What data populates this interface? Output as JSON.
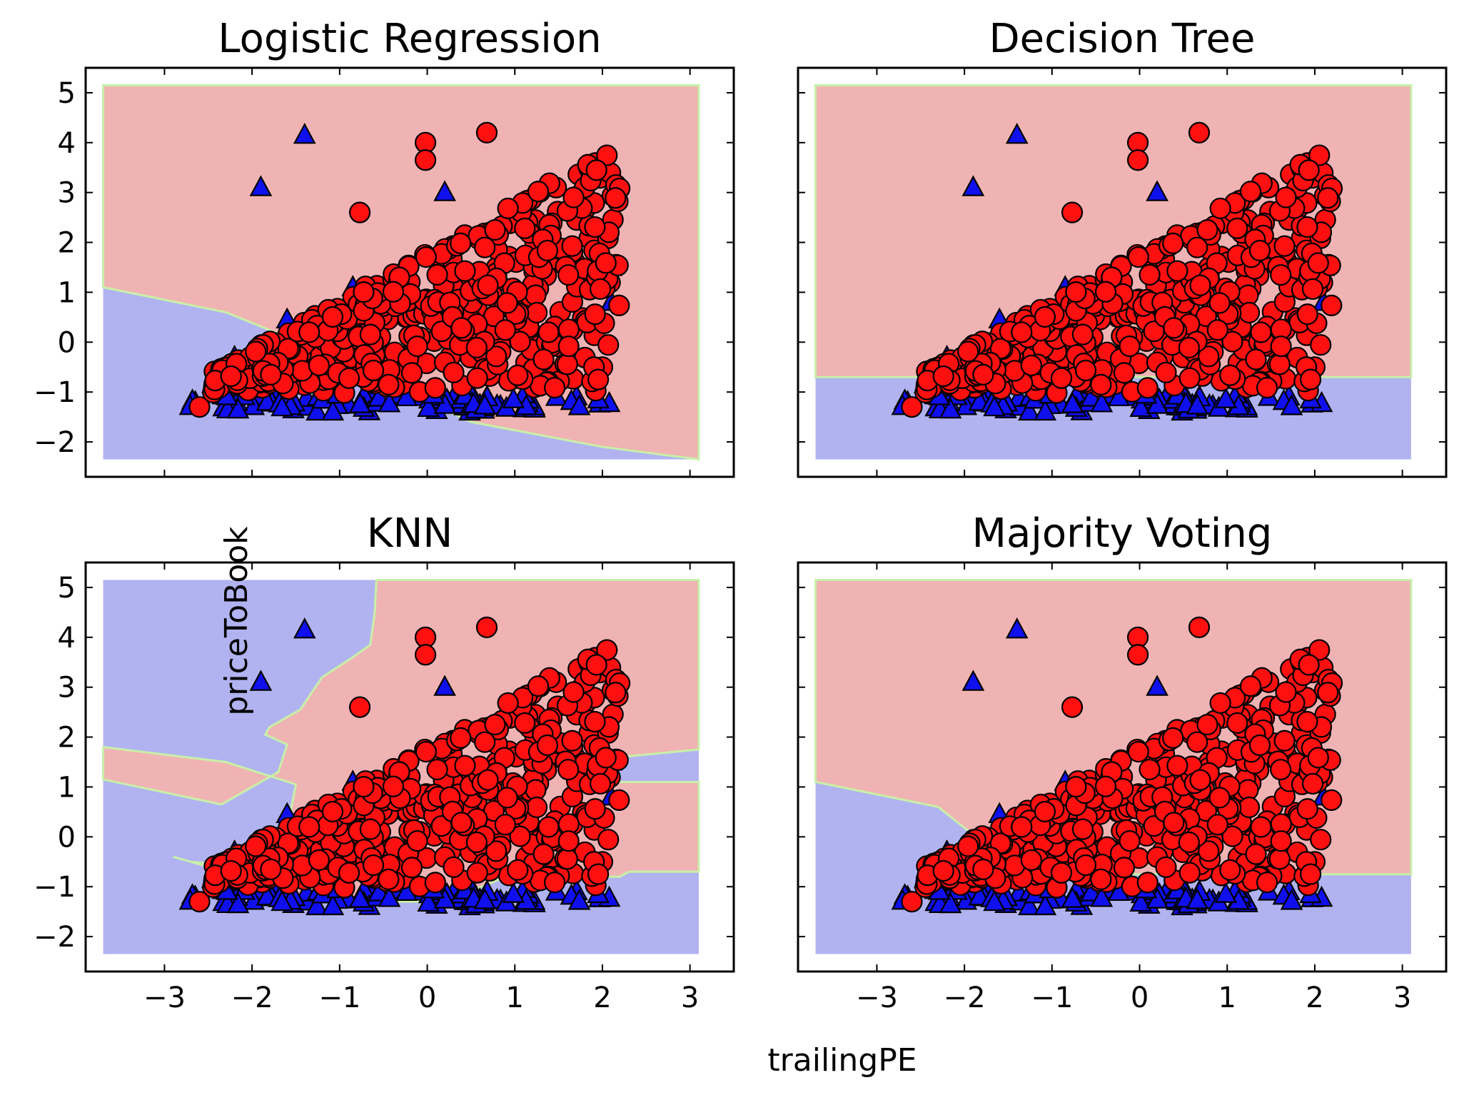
{
  "figure": {
    "xlabel": "trailingPE",
    "ylabel": "priceToBook"
  },
  "colors": {
    "region_class_0": "#b1b3f0",
    "region_class_1": "#f0b3b3",
    "boundary": "#c8f0a8",
    "marker_class_0": "#1010ee",
    "marker_class_1": "#ff1010",
    "marker_edge": "#000000"
  },
  "chart_data": [
    {
      "type": "scatter",
      "title": "Logistic Regression",
      "xlim": [
        -3.9,
        3.5
      ],
      "ylim": [
        -2.7,
        5.5
      ],
      "xticks": [
        "−3",
        "−2",
        "−1",
        "0",
        "1",
        "2",
        "3"
      ],
      "yticks": [
        "−2",
        "−1",
        "0",
        "1",
        "2",
        "3",
        "4",
        "5"
      ],
      "decision_region": {
        "class_1_above": [
          [
            -3.7,
            1.1
          ],
          [
            -2.3,
            0.6
          ],
          [
            -1.6,
            0.1
          ],
          [
            0.5,
            -1.6
          ],
          [
            2.0,
            -2.1
          ],
          [
            3.1,
            -2.35
          ]
        ]
      },
      "grid": false
    },
    {
      "type": "scatter",
      "title": "Decision Tree",
      "xlim": [
        -3.9,
        3.5
      ],
      "ylim": [
        -2.7,
        5.5
      ],
      "xticks": [
        "−3",
        "−2",
        "−1",
        "0",
        "1",
        "2",
        "3"
      ],
      "yticks": [
        "−2",
        "−1",
        "0",
        "1",
        "2",
        "3",
        "4",
        "5"
      ],
      "decision_region": {
        "class_1_above": [
          [
            -3.7,
            -0.7
          ],
          [
            3.1,
            -0.7
          ]
        ]
      },
      "grid": false
    },
    {
      "type": "scatter",
      "title": "KNN",
      "xlim": [
        -3.9,
        3.5
      ],
      "ylim": [
        -2.7,
        5.5
      ],
      "xticks": [
        "−3",
        "−2",
        "−1",
        "0",
        "1",
        "2",
        "3"
      ],
      "yticks": [
        "−2",
        "−1",
        "0",
        "1",
        "2",
        "3",
        "4",
        "5"
      ],
      "decision_region": {
        "knn_irregular": true
      },
      "grid": false
    },
    {
      "type": "scatter",
      "title": "Majority Voting",
      "xlim": [
        -3.9,
        3.5
      ],
      "ylim": [
        -2.7,
        5.5
      ],
      "xticks": [
        "−3",
        "−2",
        "−1",
        "0",
        "1",
        "2",
        "3"
      ],
      "yticks": [
        "−2",
        "−1",
        "0",
        "1",
        "2",
        "3",
        "4",
        "5"
      ],
      "decision_region": {
        "class_1_above": [
          [
            -3.7,
            1.1
          ],
          [
            -2.3,
            0.6
          ],
          [
            -1.8,
            -0.1
          ],
          [
            -0.5,
            -0.75
          ],
          [
            3.1,
            -0.75
          ]
        ]
      },
      "grid": false
    }
  ],
  "scatter_points": {
    "class_0_outliers": [
      [
        -1.4,
        4.15
      ],
      [
        -1.9,
        3.1
      ]
    ],
    "class_0_base_x": [
      -2.75,
      2.1
    ],
    "class_0_base_y": [
      -1.4,
      -1.05
    ],
    "class_1_outliers": [
      [
        -0.02,
        4.0
      ],
      [
        -0.02,
        3.65
      ],
      [
        0.68,
        4.2
      ],
      [
        -0.77,
        2.6
      ]
    ],
    "class_1_min_corner": [
      -2.6,
      -1.3
    ]
  }
}
